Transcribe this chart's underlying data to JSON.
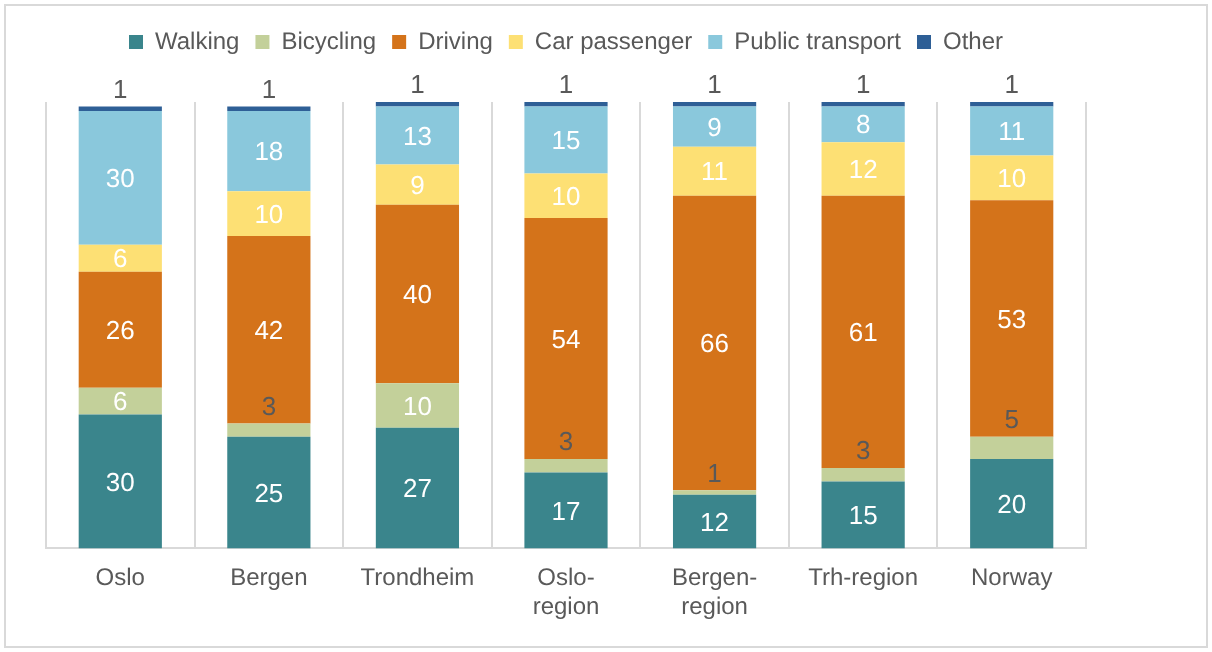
{
  "chart_data": {
    "type": "bar",
    "stacked": true,
    "categories": [
      "Oslo",
      "Bergen",
      "Trondheim",
      "Oslo-region",
      "Bergen-region",
      "Trh-region",
      "Norway"
    ],
    "series": [
      {
        "name": "Walking",
        "color": "#3a858c",
        "values": [
          30,
          25,
          27,
          17,
          12,
          15,
          20
        ]
      },
      {
        "name": "Bicycling",
        "color": "#c3d09a",
        "values": [
          6,
          3,
          10,
          3,
          1,
          3,
          5
        ]
      },
      {
        "name": "Driving",
        "color": "#d4731a",
        "values": [
          26,
          42,
          40,
          54,
          66,
          61,
          53
        ]
      },
      {
        "name": "Car passenger",
        "color": "#fde074",
        "values": [
          6,
          10,
          9,
          10,
          11,
          12,
          10
        ]
      },
      {
        "name": "Public transport",
        "color": "#8ac8dc",
        "values": [
          30,
          18,
          13,
          15,
          9,
          8,
          11
        ]
      },
      {
        "name": "Other",
        "color": "#2e5f96",
        "values": [
          1,
          1,
          1,
          1,
          1,
          1,
          1
        ]
      }
    ],
    "data_labels": true,
    "legend": "top",
    "grid": "x"
  }
}
